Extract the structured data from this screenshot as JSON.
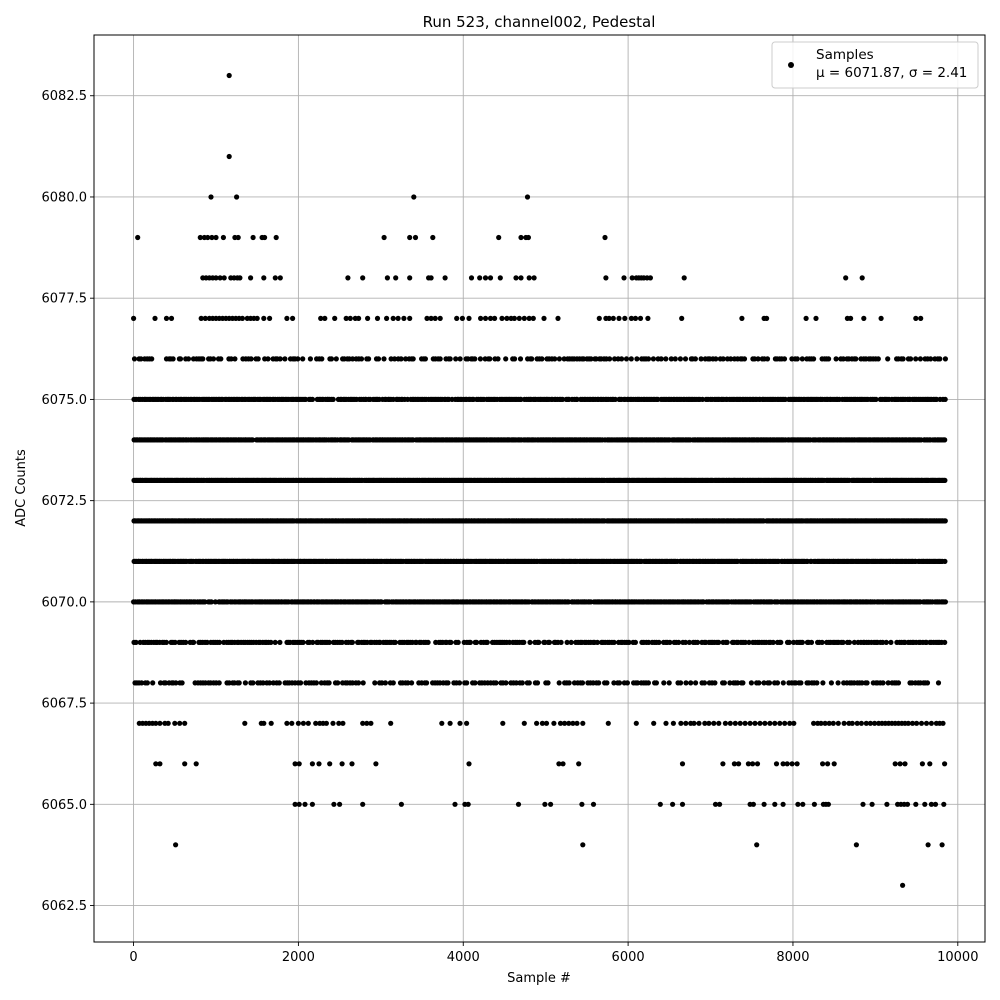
{
  "chart_data": {
    "type": "scatter",
    "title": "Run 523, channel002, Pedestal",
    "xlabel": "Sample #",
    "ylabel": "ADC Counts",
    "xlim": [
      -480,
      10330
    ],
    "ylim": [
      6061.6,
      6084.0
    ],
    "x_ticks": [
      0,
      2000,
      4000,
      6000,
      8000,
      10000
    ],
    "x_tick_labels": [
      "0",
      "2000",
      "4000",
      "6000",
      "8000",
      "10000"
    ],
    "y_ticks": [
      6062.5,
      6065.0,
      6067.5,
      6070.0,
      6072.5,
      6075.0,
      6077.5,
      6080.0,
      6082.5
    ],
    "y_tick_labels": [
      "6062.5",
      "6065.0",
      "6067.5",
      "6070.0",
      "6072.5",
      "6075.0",
      "6077.5",
      "6080.0",
      "6082.5"
    ],
    "grid": true,
    "legend_position": "top-right",
    "marker_color": "#000000",
    "n_samples": 9850,
    "series": [
      {
        "name": "Samples",
        "label_line2": "μ = 6071.87, σ = 2.41",
        "levels": [
          {
            "y": 6063,
            "x": [
              9330
            ]
          },
          {
            "y": 6064,
            "x": [
              510,
              5450,
              7560,
              8770,
              9640,
              9810
            ]
          },
          {
            "y": 6065,
            "x": [
              1960,
              2010,
              2080,
              2170,
              2430,
              2500,
              2780,
              3250,
              3900,
              4020,
              4060,
              4670,
              4990,
              5060,
              5440,
              5580,
              6390,
              6540,
              6660,
              7060,
              7110,
              7480,
              7520,
              7650,
              7780,
              7880,
              8060,
              8120,
              8260,
              8370,
              8400,
              8430,
              8850,
              8960,
              9140,
              9270,
              9310,
              9350,
              9390,
              9490,
              9600,
              9680,
              9730,
              9830
            ]
          },
          {
            "y": 6066,
            "x": [
              270,
              320,
              620,
              760,
              1960,
              2010,
              2170,
              2250,
              2380,
              2530,
              2650,
              2940,
              4070,
              5160,
              5210,
              5400,
              6660,
              7150,
              7290,
              7340,
              7460,
              7510,
              7570,
              7800,
              7880,
              7930,
              7990,
              8050,
              8360,
              8420,
              8500,
              9240,
              9300,
              9360,
              9570,
              9660,
              9840
            ]
          },
          {
            "y": 6067,
            "x": [
              70,
              110,
              150,
              190,
              230,
              270,
              320,
              380,
              420,
              500,
              560,
              620,
              1350,
              1550,
              1580,
              1670,
              1860,
              1920,
              2000,
              2060,
              2120,
              2210,
              2260,
              2300,
              2340,
              2420,
              2490,
              2540,
              2780,
              2830,
              2880,
              3120,
              3740,
              3840,
              3960,
              4040,
              4480,
              4740,
              4890,
              4960,
              5010,
              5100,
              5180,
              5230,
              5280,
              5330,
              5380,
              5450,
              5760,
              6100,
              6310,
              6460,
              6550,
              6640,
              6700,
              6760,
              6800,
              6860,
              6930,
              6980,
              7040,
              7100,
              7180,
              7240,
              7300,
              7360,
              7420,
              7480,
              7540,
              7600,
              7660,
              7720,
              7780,
              7840,
              7900,
              7960,
              8010,
              8250,
              8300,
              8340,
              8390,
              8440,
              8490,
              8550,
              8620,
              8680,
              8720,
              8780,
              8830,
              8890,
              8940,
              8990,
              9040,
              9080,
              9120,
              9160,
              9200,
              9240,
              9280,
              9320,
              9360,
              9400,
              9450,
              9500,
              9560,
              9620,
              9680,
              9740,
              9780,
              9820
            ]
          },
          {
            "y": 6077,
            "x": [
              0,
              260,
              400,
              460,
              820,
              870,
              920,
              960,
              1000,
              1040,
              1080,
              1120,
              1160,
              1200,
              1240,
              1280,
              1320,
              1380,
              1420,
              1460,
              1500,
              1580,
              1650,
              1860,
              1930,
              2270,
              2320,
              2440,
              2580,
              2630,
              2690,
              2730,
              2840,
              2960,
              3070,
              3150,
              3210,
              3280,
              3350,
              3560,
              3610,
              3660,
              3720,
              3920,
              3990,
              4070,
              4210,
              4270,
              4330,
              4380,
              4470,
              4530,
              4580,
              4620,
              4680,
              4740,
              4800,
              4850,
              4980,
              5150,
              5650,
              5730,
              5770,
              5820,
              5890,
              5960,
              6040,
              6090,
              6150,
              6240,
              6650,
              7380,
              7650,
              7680,
              8160,
              8280,
              8660,
              8700,
              8860,
              9070,
              9490,
              9550
            ]
          },
          {
            "y": 6078,
            "x": [
              840,
              880,
              920,
              960,
              1000,
              1050,
              1100,
              1180,
              1220,
              1260,
              1290,
              1420,
              1580,
              1720,
              1780,
              2600,
              2780,
              3080,
              3180,
              3350,
              3580,
              3610,
              3780,
              4100,
              4200,
              4270,
              4330,
              4450,
              4640,
              4700,
              4800,
              4860,
              5730,
              5950,
              6050,
              6100,
              6130,
              6160,
              6190,
              6230,
              6270,
              6680,
              8640,
              8840
            ]
          },
          {
            "y": 6079,
            "x": [
              50,
              810,
              860,
              900,
              950,
              1000,
              1090,
              1230,
              1270,
              1450,
              1560,
              1590,
              1730,
              3040,
              3350,
              3420,
              3630,
              4430,
              4700,
              4760,
              4790,
              5720
            ]
          },
          {
            "y": 6080,
            "x": [
              940,
              1250,
              3400,
              4780
            ]
          },
          {
            "y": 6081,
            "x": [
              1160
            ]
          },
          {
            "y": 6083,
            "x": [
              1160
            ]
          }
        ]
      }
    ]
  }
}
